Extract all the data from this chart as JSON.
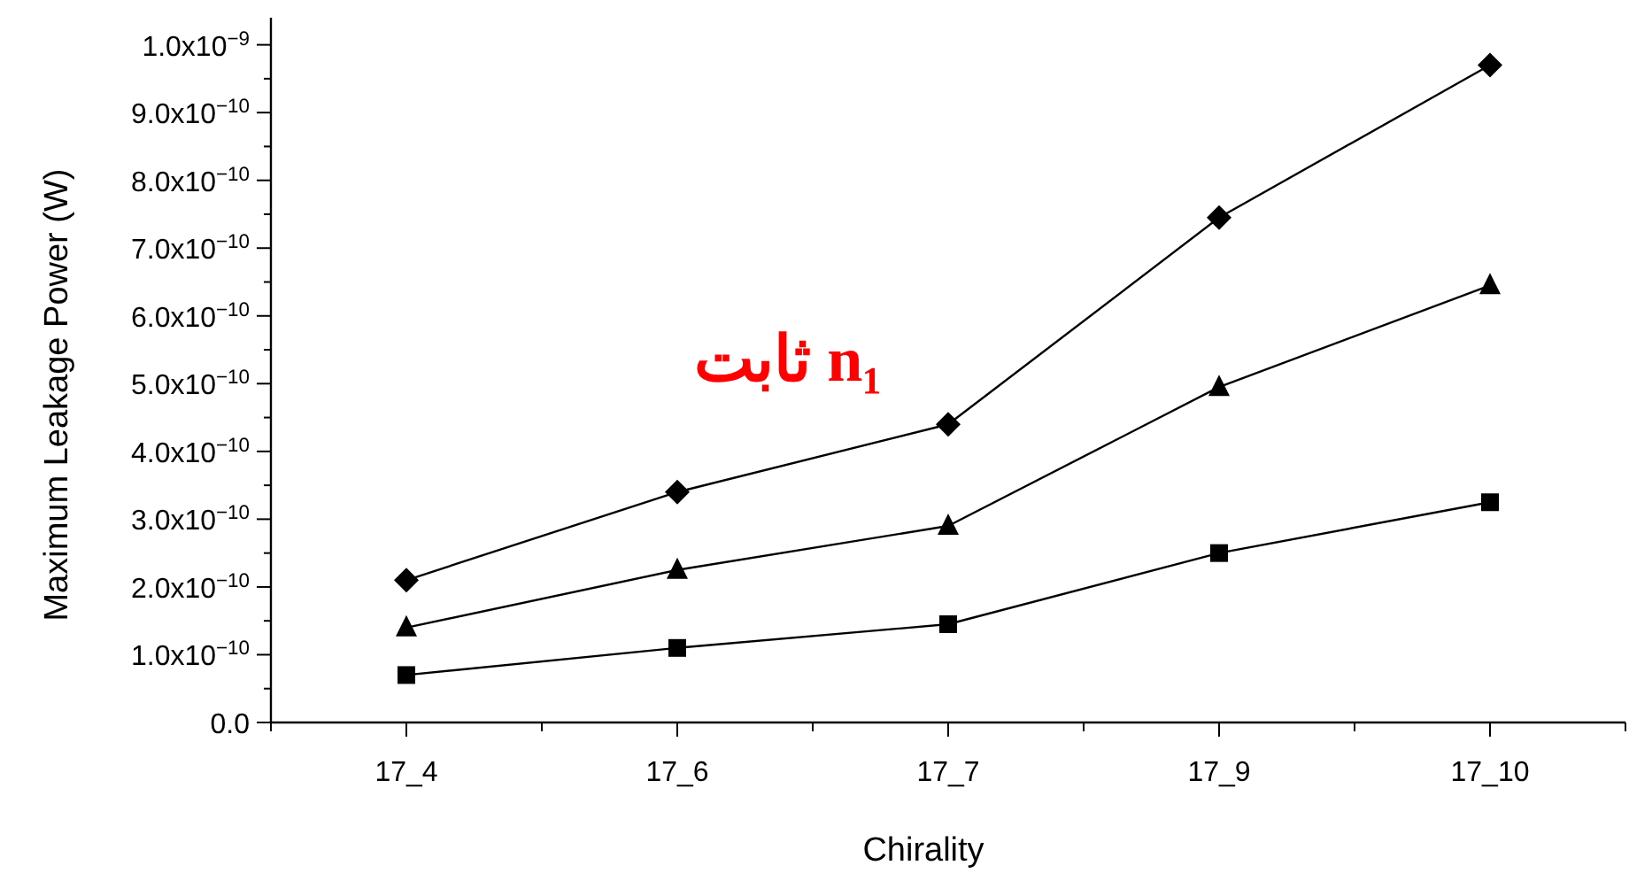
{
  "chart_data": {
    "type": "line",
    "xlabel": "Chirality",
    "ylabel": "Maximum Leakage Power (W)",
    "categories": [
      "17_4",
      "17_6",
      "17_7",
      "17_9",
      "17_10"
    ],
    "series": [
      {
        "color": "#000000",
        "marker": "diamond",
        "values": [
          2.1e-10,
          3.4e-10,
          4.4e-10,
          7.45e-10,
          9.7e-10
        ]
      },
      {
        "color": "#000000",
        "marker": "triangle",
        "values": [
          1.4e-10,
          2.25e-10,
          2.9e-10,
          4.95e-10,
          6.45e-10
        ]
      },
      {
        "color": "#000000",
        "marker": "square",
        "values": [
          7e-11,
          1.1e-10,
          1.45e-10,
          2.5e-10,
          3.25e-10
        ]
      }
    ],
    "ylim": [
      0,
      1.04e-09
    ],
    "yticks": [
      {
        "value": 0,
        "label": "0.0"
      },
      {
        "value": 1e-10,
        "label": "1.0x10$^{−10}$"
      },
      {
        "value": 2e-10,
        "label": "2.0x10$^{−10}$"
      },
      {
        "value": 3e-10,
        "label": "3.0x10$^{−10}$"
      },
      {
        "value": 4e-10,
        "label": "4.0x10$^{−10}$"
      },
      {
        "value": 5e-10,
        "label": "5.0x10$^{−10}$"
      },
      {
        "value": 6e-10,
        "label": "6.0x10$^{−10}$"
      },
      {
        "value": 7e-10,
        "label": "7.0x10$^{−10}$"
      },
      {
        "value": 8e-10,
        "label": "8.0x10$^{−10}$"
      },
      {
        "value": 9e-10,
        "label": "9.0x10$^{−10}$"
      },
      {
        "value": 1e-09,
        "label": "1.0x10$^{−9}$"
      }
    ],
    "annotations": [
      "ثابت n₁"
    ],
    "grid": false,
    "line_style": "solid"
  }
}
